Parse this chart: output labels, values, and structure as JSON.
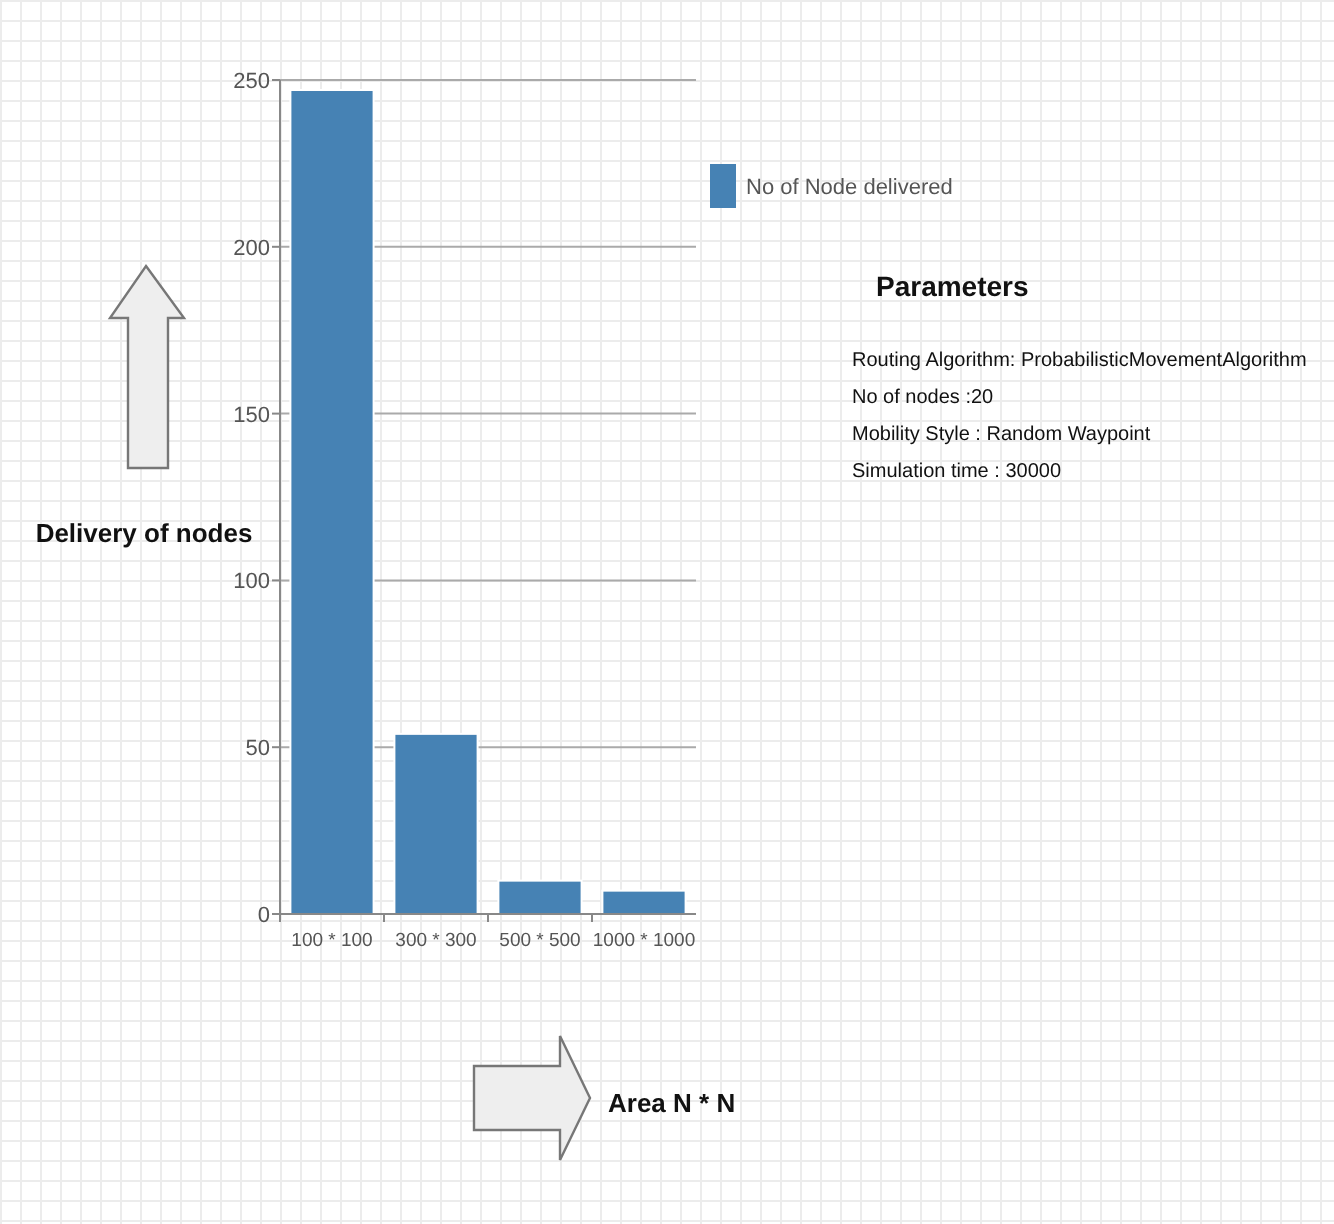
{
  "chart_data": {
    "type": "bar",
    "ylabel": "Delivery of nodes",
    "categories": [
      "100 * 100",
      "300 * 300",
      "500 * 500",
      "1000 * 1000"
    ],
    "series": [
      {
        "name": "No of Node delivered",
        "color": "#4682b4",
        "values": [
          247,
          54,
          10,
          7
        ]
      }
    ],
    "ylim": [
      0,
      250
    ],
    "yticks": [
      0,
      50,
      100,
      150,
      200,
      250
    ],
    "grid": "y",
    "legend": "top right",
    "annotations": [
      "Parameters",
      "Routing Algorithm: ProbabilisticMovementAlgorithm",
      "No of nodes :20",
      "Mobility Style : Random Waypoint",
      "Simulation time : 30000",
      "Area N * N"
    ]
  }
}
